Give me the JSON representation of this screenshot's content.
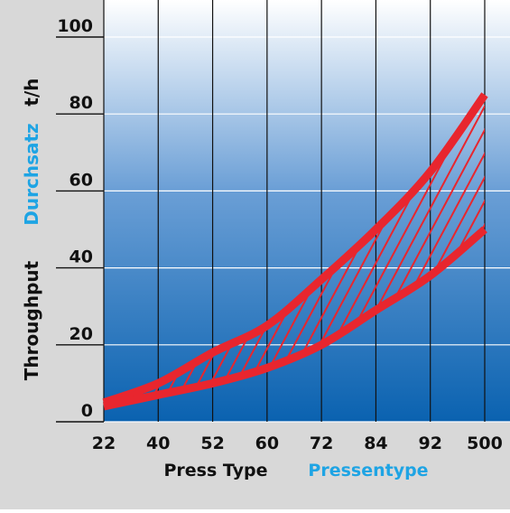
{
  "chart_data": {
    "type": "area",
    "categories": [
      "22",
      "40",
      "52",
      "60",
      "72",
      "84",
      "92",
      "500"
    ],
    "y_ticks": [
      0,
      20,
      40,
      60,
      80,
      100
    ],
    "ylim": [
      0,
      100
    ],
    "grid": true,
    "xlabel_en": "Press Type",
    "xlabel_de": "Pressentype",
    "ylabel_en": "Throughput",
    "ylabel_de": "Durchsatz",
    "y_unit": "t/h",
    "series": [
      {
        "values": [
          5,
          10,
          18,
          25,
          37,
          50,
          65,
          85
        ]
      },
      {
        "values": [
          4,
          7,
          10,
          14,
          20,
          29,
          38,
          50
        ]
      }
    ],
    "colors": {
      "curve": "#e8262e",
      "english_label": "#111111",
      "german_label": "#1ea4e4",
      "plot_top": "#ffffff",
      "plot_bottom": "#0a62b0",
      "background": "#d8d8d8"
    }
  }
}
